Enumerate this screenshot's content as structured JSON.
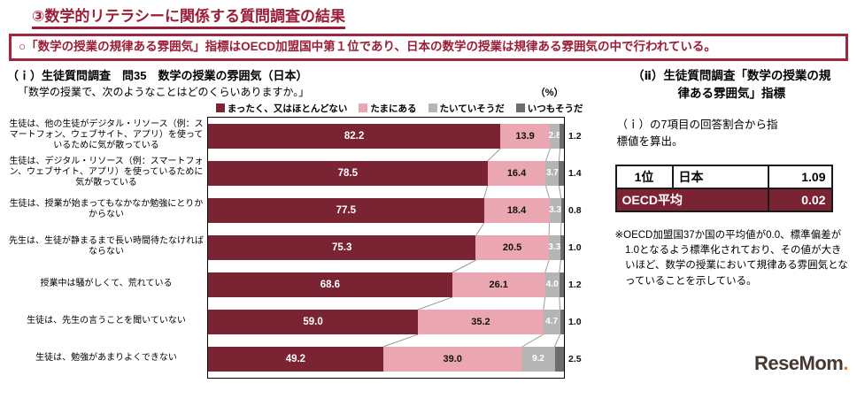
{
  "page": {
    "title": "③数学的リテラシーに関係する質問調査の結果",
    "callout": "○「数学の授業の規律ある雰囲気」指標はOECD加盟国中第１位であり、日本の数学の授業は規律ある雰囲気の中で行われている。"
  },
  "left": {
    "heading": "（ｉ）生徒質問調査　問35　数学の授業の雰囲気（日本）",
    "subheading": "「数学の授業で、次のようなことはどのくらいありますか。」",
    "unit_label": "（%）"
  },
  "chart_data": {
    "type": "bar",
    "orientation": "horizontal",
    "stacked": true,
    "unit": "%",
    "xlim": [
      0,
      100
    ],
    "title": "数学の授業の雰囲気（日本）",
    "legend": [
      {
        "label": "まったく、又はほとんどない",
        "color": "#7a2333"
      },
      {
        "label": "たまにある",
        "color": "#ebA7b1"
      },
      {
        "label": "たいていそうだ",
        "color": "#b5b5b5"
      },
      {
        "label": "いつもそうだ",
        "color": "#6d6d6d"
      }
    ],
    "categories": [
      "生徒は、他の生徒がデジタル・リソース（例：スマートフォン、ウェブサイト、アプリ）を使っているために気が散っている",
      "生徒は、デジタル・リソース（例：スマートフォン、ウェブサイト、アプリ）を使っているために気が散っている",
      "生徒は、授業が始まってもなかなか勉強にとりかからない",
      "先生は、生徒が静まるまで長い時間待たなければならない",
      "授業中は騒がしくて、荒れている",
      "生徒は、先生の言うことを聞いていない",
      "生徒は、勉強があまりよくできない"
    ],
    "series": [
      {
        "name": "まったく、又はほとんどない",
        "values": [
          82.2,
          78.5,
          77.5,
          75.3,
          68.6,
          59.0,
          49.2
        ]
      },
      {
        "name": "たまにある",
        "values": [
          13.9,
          16.4,
          18.4,
          20.5,
          26.1,
          35.2,
          39.0
        ]
      },
      {
        "name": "たいていそうだ",
        "values": [
          2.8,
          3.7,
          3.3,
          3.3,
          4.0,
          4.7,
          9.2
        ]
      },
      {
        "name": "いつもそうだ",
        "values": [
          1.2,
          1.4,
          0.8,
          1.0,
          1.2,
          1.0,
          2.5
        ]
      }
    ]
  },
  "right": {
    "heading": "（ⅱ）生徒質問調査「数学の授業の規律ある雰囲気」指標",
    "description": "（ｉ）の7項目の回答割合から指標値を算出。",
    "table": {
      "rows": [
        {
          "rank": "1位",
          "name": "日本",
          "value": "1.09"
        },
        {
          "rank": "",
          "name": "OECD平均",
          "value": "0.02"
        }
      ]
    },
    "note": "※OECD加盟国37か国の平均値が0.0、標準偏差が1.0となるよう標準化されており、その値が大きいほど、数学の授業において規律ある雰囲気となっていることを示している。"
  },
  "logo": {
    "text": "ReseMom",
    "dot": "."
  }
}
